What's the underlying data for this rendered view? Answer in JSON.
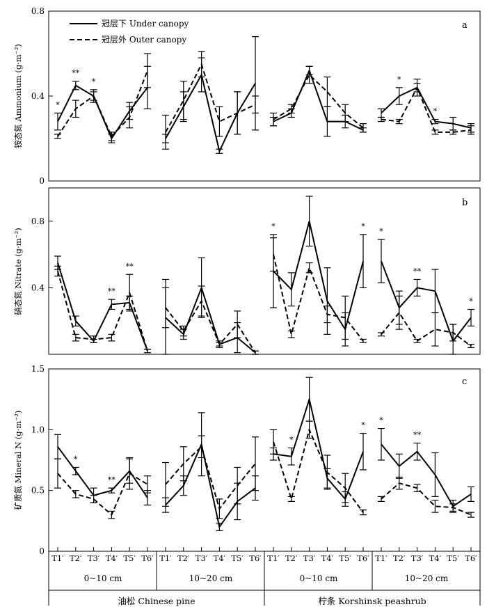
{
  "legend": {
    "under": "冠层下 Under canopy",
    "outer": "冠层外 Outer canopy"
  },
  "categories": [
    "T1′",
    "T2′",
    "T3′",
    "T4′",
    "T5′",
    "T6′"
  ],
  "groups": [
    {
      "depth": "0~10 cm",
      "species": "油松 Chinese pine"
    },
    {
      "depth": "10~20 cm",
      "species": "油松 Chinese pine"
    },
    {
      "depth": "0~10 cm",
      "species": "柠条 Korshinsk peashrub"
    },
    {
      "depth": "10~20 cm",
      "species": "柠条 Korshinsk peashrub"
    }
  ],
  "species": [
    "油松 Chinese pine",
    "柠条 Korshinsk peashrub"
  ],
  "chart_data": [
    {
      "type": "line",
      "panel": "a",
      "ylabel": "铵态氮 Ammonium (g·m⁻²)",
      "ylim": [
        0,
        0.8
      ],
      "yticks": [
        "0",
        "0.4",
        "0.8"
      ],
      "ytick_values": [
        0,
        0.4,
        0.8
      ],
      "series": [
        {
          "name": "冠层下 Under canopy",
          "style": "solid",
          "values": [
            [
              0.28,
              0.45,
              0.4,
              0.2,
              0.33,
              0.44
            ],
            [
              0.2,
              0.35,
              0.5,
              0.14,
              0.32,
              0.46
            ],
            [
              0.28,
              0.32,
              0.52,
              0.28,
              0.28,
              0.24
            ],
            [
              0.32,
              0.4,
              0.44,
              0.28,
              0.27,
              0.25
            ]
          ],
          "errors": [
            [
              0.04,
              0.02,
              0.03,
              0.02,
              0.04,
              0.1
            ],
            [
              0.02,
              0.07,
              0.08,
              0.01,
              0.1,
              0.22
            ],
            [
              0.02,
              0.02,
              0.02,
              0.07,
              0.03,
              0.01
            ],
            [
              0.02,
              0.04,
              0.02,
              0.01,
              0.03,
              0.02
            ]
          ]
        },
        {
          "name": "冠层外 Outer canopy",
          "style": "dashed",
          "values": [
            [
              0.21,
              0.34,
              0.4,
              0.21,
              0.3,
              0.52
            ],
            [
              0.23,
              0.38,
              0.55,
              0.28,
              0.32,
              0.36
            ],
            [
              0.29,
              0.34,
              0.5,
              0.42,
              0.32,
              0.25
            ],
            [
              0.29,
              0.28,
              0.44,
              0.23,
              0.23,
              0.24
            ]
          ],
          "errors": [
            [
              0.01,
              0.04,
              0.02,
              0.02,
              0.05,
              0.08
            ],
            [
              0.08,
              0.09,
              0.06,
              0.07,
              0.1,
              0.04
            ],
            [
              0.03,
              0.02,
              0.04,
              0.07,
              0.04,
              0.02
            ],
            [
              0.01,
              0.01,
              0.04,
              0.01,
              0.01,
              0.02
            ]
          ]
        }
      ],
      "significance": [
        [
          "*",
          "**",
          "*",
          "",
          "",
          ""
        ],
        [
          "",
          "",
          "",
          "",
          "",
          ""
        ],
        [
          "",
          "",
          "",
          "",
          "",
          ""
        ],
        [
          "",
          "*",
          "",
          "*",
          "",
          ""
        ]
      ]
    },
    {
      "type": "line",
      "panel": "b",
      "ylabel": "硝态氮 Nitrate (g·m⁻²)",
      "ylim": [
        0,
        1.0
      ],
      "yticks": [
        "0.4",
        "0.8"
      ],
      "ytick_values": [
        0.4,
        0.8
      ],
      "series": [
        {
          "name": "冠层下 Under canopy",
          "style": "solid",
          "values": [
            [
              0.55,
              0.2,
              0.08,
              0.3,
              0.31,
              0.02
            ],
            [
              0.22,
              0.12,
              0.4,
              0.06,
              0.1,
              0.01
            ],
            [
              0.5,
              0.39,
              0.8,
              0.32,
              0.15,
              0.56
            ],
            [
              0.56,
              0.28,
              0.4,
              0.38,
              0.08,
              0.22
            ]
          ],
          "errors": [
            [
              0.04,
              0.03,
              0.01,
              0.03,
              0.04,
              0.01
            ],
            [
              0.23,
              0.03,
              0.18,
              0.02,
              0.09,
              0.01
            ],
            [
              0.22,
              0.1,
              0.15,
              0.2,
              0.1,
              0.16
            ],
            [
              0.13,
              0.1,
              0.05,
              0.13,
              0.1,
              0.05
            ]
          ]
        },
        {
          "name": "冠层外 Outer canopy",
          "style": "dashed",
          "values": [
            [
              0.5,
              0.1,
              0.09,
              0.1,
              0.37,
              0.02
            ],
            [
              0.28,
              0.14,
              0.32,
              0.06,
              0.18,
              0.01
            ],
            [
              0.6,
              0.12,
              0.52,
              0.24,
              0.22,
              0.08
            ],
            [
              0.12,
              0.25,
              0.08,
              0.15,
              0.13,
              0.05
            ]
          ],
          "errors": [
            [
              0.03,
              0.02,
              0.02,
              0.02,
              0.11,
              0.01
            ],
            [
              0.12,
              0.03,
              0.09,
              0.01,
              0.08,
              0.01
            ],
            [
              0.1,
              0.02,
              0.03,
              0.05,
              0.13,
              0.01
            ],
            [
              0.01,
              0.1,
              0.01,
              0.1,
              0.05,
              0.01
            ]
          ]
        }
      ],
      "significance": [
        [
          "",
          "",
          "",
          "**",
          "**",
          ""
        ],
        [
          "",
          "",
          "",
          "",
          "",
          ""
        ],
        [
          "*",
          "",
          "",
          "",
          "",
          "*"
        ],
        [
          "*",
          "",
          "**",
          "",
          "",
          "*"
        ]
      ]
    },
    {
      "type": "line",
      "panel": "c",
      "ylabel": "矿质氮 Mineral N (g·m⁻²)",
      "ylim": [
        0,
        1.5
      ],
      "yticks": [
        "0",
        "0.5",
        "1.0",
        "1.5"
      ],
      "ytick_values": [
        0,
        0.5,
        1.0,
        1.5
      ],
      "series": [
        {
          "name": "冠层下 Under canopy",
          "style": "solid",
          "values": [
            [
              0.86,
              0.66,
              0.46,
              0.5,
              0.66,
              0.44
            ],
            [
              0.38,
              0.54,
              0.88,
              0.2,
              0.41,
              0.52
            ],
            [
              0.8,
              0.78,
              1.25,
              0.6,
              0.43,
              0.82
            ],
            [
              0.88,
              0.7,
              0.82,
              0.63,
              0.37,
              0.47
            ]
          ],
          "errors": [
            [
              0.1,
              0.03,
              0.06,
              0.02,
              0.1,
              0.06
            ],
            [
              0.06,
              0.08,
              0.26,
              0.03,
              0.15,
              0.1
            ],
            [
              0.05,
              0.07,
              0.18,
              0.08,
              0.06,
              0.15
            ],
            [
              0.13,
              0.1,
              0.07,
              0.18,
              0.05,
              0.06
            ]
          ]
        },
        {
          "name": "冠层外 Outer canopy",
          "style": "dashed",
          "values": [
            [
              0.64,
              0.47,
              0.43,
              0.3,
              0.64,
              0.55
            ],
            [
              0.55,
              0.72,
              0.86,
              0.35,
              0.54,
              0.72
            ],
            [
              0.9,
              0.43,
              1.0,
              0.65,
              0.52,
              0.32
            ],
            [
              0.43,
              0.56,
              0.52,
              0.37,
              0.36,
              0.3
            ]
          ],
          "errors": [
            [
              0.12,
              0.03,
              0.03,
              0.03,
              0.13,
              0.07
            ],
            [
              0.18,
              0.14,
              0.09,
              0.08,
              0.15,
              0.22
            ],
            [
              0.1,
              0.02,
              0.07,
              0.14,
              0.12,
              0.02
            ],
            [
              0.02,
              0.05,
              0.03,
              0.05,
              0.03,
              0.02
            ]
          ]
        }
      ],
      "significance": [
        [
          "",
          "*",
          "",
          "**",
          "",
          ""
        ],
        [
          "",
          "",
          "",
          "",
          "",
          ""
        ],
        [
          "",
          "*",
          "",
          "",
          "",
          "*"
        ],
        [
          "*",
          "",
          "**",
          "",
          "",
          ""
        ]
      ]
    }
  ]
}
